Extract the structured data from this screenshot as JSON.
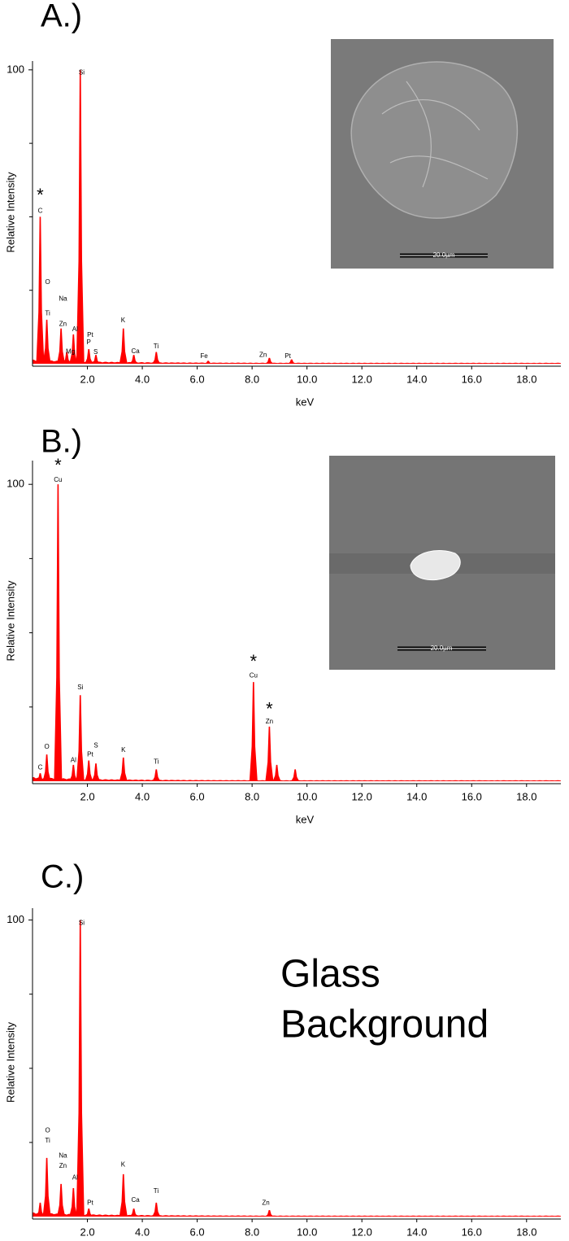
{
  "chart_data": [
    {
      "type": "spectrum",
      "panel_label": "A.)",
      "color": "#ff0000",
      "x": [
        0.28,
        0.52,
        1.04,
        1.25,
        1.49,
        1.74,
        2.05,
        2.31,
        3.31,
        3.69,
        4.51,
        6.4,
        8.63,
        9.44
      ],
      "values": [
        50,
        15,
        12,
        4,
        10,
        100,
        5,
        3,
        12,
        3,
        4,
        1,
        2,
        1.5
      ],
      "xlim": [
        0,
        19.25
      ],
      "ylim": [
        0,
        103
      ],
      "xticks": [
        {
          "value": 2,
          "label": "2.0"
        },
        {
          "value": 4,
          "label": "4.0"
        },
        {
          "value": 6,
          "label": "6.0"
        },
        {
          "value": 8,
          "label": "8.0"
        },
        {
          "value": 10,
          "label": "10.0"
        },
        {
          "value": 12,
          "label": "12.0"
        },
        {
          "value": 14,
          "label": "14.0"
        },
        {
          "value": 16,
          "label": "16.0"
        },
        {
          "value": 18,
          "label": "18.0"
        }
      ],
      "yticks": [
        100
      ],
      "y_minor_ticks": [
        25,
        50,
        75
      ],
      "xlabel": "keV",
      "ylabel": "Relative Intensity",
      "annotations": [
        {
          "text": "*",
          "x": 0.28,
          "y": 57
        },
        {
          "text": "C",
          "x": 0.28,
          "y": 52
        },
        {
          "text": "O",
          "x": 0.55,
          "y": 27.7
        },
        {
          "text": "Ti",
          "x": 0.55,
          "y": 17
        },
        {
          "text": "Na",
          "x": 1.11,
          "y": 22
        },
        {
          "text": "Zn",
          "x": 1.11,
          "y": 13.5
        },
        {
          "text": "Mg",
          "x": 1.38,
          "y": 4
        },
        {
          "text": "Al",
          "x": 1.55,
          "y": 11.6
        },
        {
          "text": "Si",
          "x": 1.79,
          "y": 99
        },
        {
          "text": "Pt",
          "x": 2.1,
          "y": 9.7
        },
        {
          "text": "P",
          "x": 2.05,
          "y": 7.2
        },
        {
          "text": "S",
          "x": 2.3,
          "y": 3.9
        },
        {
          "text": "K",
          "x": 3.3,
          "y": 14.7
        },
        {
          "text": "Ca",
          "x": 3.75,
          "y": 4.2
        },
        {
          "text": "Ti",
          "x": 4.5,
          "y": 5.8
        },
        {
          "text": "Fe",
          "x": 6.25,
          "y": 2.5
        },
        {
          "text": "Zn",
          "x": 8.4,
          "y": 3
        },
        {
          "text": "Pt",
          "x": 9.3,
          "y": 2.5
        }
      ],
      "inset_scale_label": "20.0µm"
    },
    {
      "type": "spectrum",
      "panel_label": "B.)",
      "color": "#ff0000",
      "x": [
        0.28,
        0.52,
        0.93,
        1.49,
        1.74,
        2.05,
        2.31,
        3.31,
        4.51,
        8.05,
        8.63,
        8.9,
        9.57
      ],
      "values": [
        2.7,
        9,
        100,
        5.5,
        29,
        7,
        6,
        8,
        4,
        33.4,
        18.4,
        5.5,
        4
      ],
      "xlim": [
        0,
        19.25
      ],
      "ylim": [
        0,
        108
      ],
      "xticks": [
        {
          "value": 2,
          "label": "2.0"
        },
        {
          "value": 4,
          "label": "4.0"
        },
        {
          "value": 6,
          "label": "6.0"
        },
        {
          "value": 8,
          "label": "8.0"
        },
        {
          "value": 10,
          "label": "10.0"
        },
        {
          "value": 12,
          "label": "12.0"
        },
        {
          "value": 14,
          "label": "14.0"
        },
        {
          "value": 16,
          "label": "16.0"
        },
        {
          "value": 18,
          "label": "18.0"
        }
      ],
      "yticks": [
        100
      ],
      "y_minor_ticks": [
        25,
        50,
        75
      ],
      "xlabel": "keV",
      "ylabel": "Relative Intensity",
      "annotations": [
        {
          "text": "*",
          "x": 0.93,
          "y": 106
        },
        {
          "text": "Cu",
          "x": 0.93,
          "y": 101.5
        },
        {
          "text": "Si",
          "x": 1.74,
          "y": 31.5
        },
        {
          "text": "O",
          "x": 0.52,
          "y": 11.5
        },
        {
          "text": "C",
          "x": 0.28,
          "y": 4.5
        },
        {
          "text": "Al",
          "x": 1.49,
          "y": 7
        },
        {
          "text": "Pt",
          "x": 2.1,
          "y": 9
        },
        {
          "text": "S",
          "x": 2.31,
          "y": 12
        },
        {
          "text": "K",
          "x": 3.31,
          "y": 10.5
        },
        {
          "text": "Ti",
          "x": 4.51,
          "y": 6.5
        },
        {
          "text": "*",
          "x": 8.05,
          "y": 40
        },
        {
          "text": "Cu",
          "x": 8.05,
          "y": 35.5
        },
        {
          "text": "*",
          "x": 8.63,
          "y": 24
        },
        {
          "text": "Zn",
          "x": 8.63,
          "y": 20
        }
      ],
      "inset_scale_label": "20.0µm"
    },
    {
      "type": "spectrum",
      "panel_label": "C.)",
      "color": "#ff0000",
      "x": [
        0.28,
        0.52,
        1.04,
        1.49,
        1.74,
        2.05,
        3.31,
        3.69,
        4.51,
        8.63
      ],
      "values": [
        4.7,
        19.8,
        11,
        9.6,
        100,
        2.7,
        14.3,
        2.7,
        4.7,
        2.2
      ],
      "xlim": [
        0,
        19.25
      ],
      "ylim": [
        0,
        104
      ],
      "xticks": [
        {
          "value": 2,
          "label": "2.0"
        },
        {
          "value": 4,
          "label": "4.0"
        },
        {
          "value": 6,
          "label": "6.0"
        },
        {
          "value": 8,
          "label": "8.0"
        },
        {
          "value": 10,
          "label": "10.0"
        },
        {
          "value": 12,
          "label": "12.0"
        },
        {
          "value": 14,
          "label": "14.0"
        },
        {
          "value": 16,
          "label": "16.0"
        },
        {
          "value": 18,
          "label": "18.0"
        }
      ],
      "yticks": [
        100
      ],
      "y_minor_ticks": [
        25,
        50,
        75
      ],
      "ylabel": "Relative Intensity",
      "annotations": [
        {
          "text": "Si",
          "x": 1.79,
          "y": 99
        },
        {
          "text": "O",
          "x": 0.55,
          "y": 29
        },
        {
          "text": "Ti",
          "x": 0.55,
          "y": 25.5
        },
        {
          "text": "Na",
          "x": 1.11,
          "y": 20.5
        },
        {
          "text": "Zn",
          "x": 1.11,
          "y": 17
        },
        {
          "text": "Al",
          "x": 1.55,
          "y": 13
        },
        {
          "text": "Pt",
          "x": 2.1,
          "y": 4.5
        },
        {
          "text": "K",
          "x": 3.3,
          "y": 17.5
        },
        {
          "text": "Ca",
          "x": 3.75,
          "y": 5.5
        },
        {
          "text": "Ti",
          "x": 4.5,
          "y": 8.5
        },
        {
          "text": "Zn",
          "x": 8.5,
          "y": 4.5
        }
      ],
      "note_lines": [
        "Glass",
        "Background"
      ]
    }
  ]
}
